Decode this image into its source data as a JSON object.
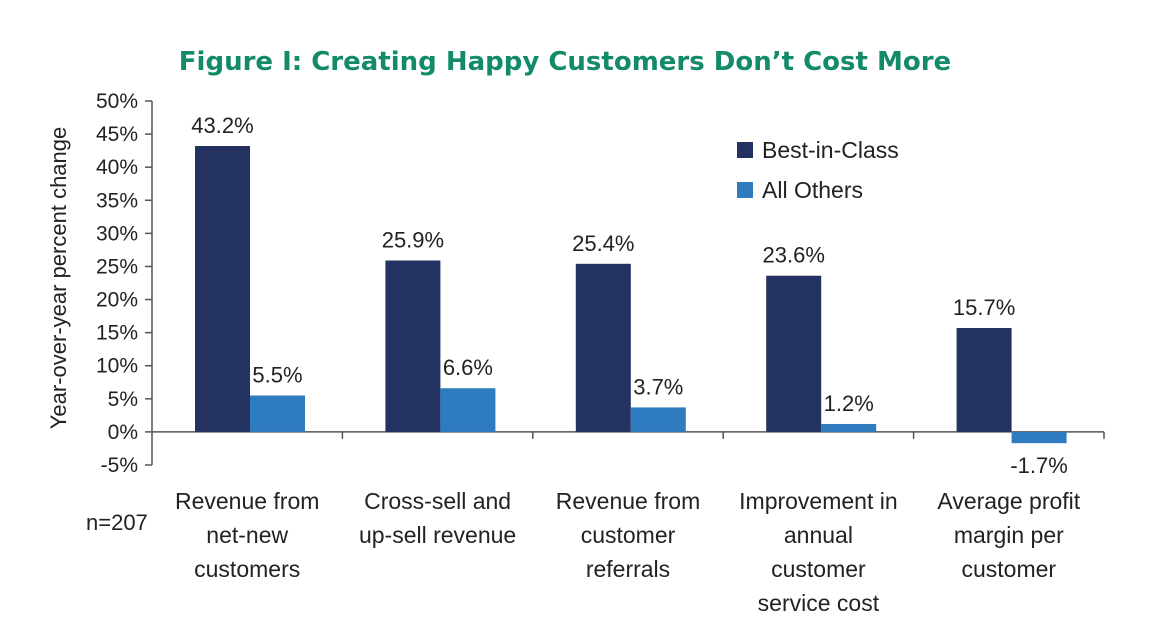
{
  "chart_data": {
    "type": "bar",
    "title": "Figure I: Creating Happy Customers Don’t Cost More",
    "ylabel": "Year-over-year percent change",
    "xlabel": "",
    "ylim": [
      -5,
      50
    ],
    "yticks": [
      -5,
      0,
      5,
      10,
      15,
      20,
      25,
      30,
      35,
      40,
      45,
      50
    ],
    "ytick_labels": [
      "-5%",
      "0%",
      "5%",
      "10%",
      "15%",
      "20%",
      "25%",
      "30%",
      "35%",
      "40%",
      "45%",
      "50%"
    ],
    "categories": [
      [
        "Revenue from",
        "net-new",
        "customers"
      ],
      [
        "Cross-sell and",
        "up-sell revenue"
      ],
      [
        "Revenue from",
        "customer",
        "referrals"
      ],
      [
        "Improvement in",
        "annual",
        "customer",
        "service cost"
      ],
      [
        "Average profit",
        "margin per",
        "customer"
      ]
    ],
    "series": [
      {
        "name": "Best-in-Class",
        "color": "#243262",
        "values": [
          43.2,
          25.9,
          25.4,
          23.6,
          15.7
        ],
        "labels": [
          "43.2%",
          "25.9%",
          "25.4%",
          "23.6%",
          "15.7%"
        ]
      },
      {
        "name": "All Others",
        "color": "#2e7bc0",
        "values": [
          5.5,
          6.6,
          3.7,
          1.2,
          -1.7
        ],
        "labels": [
          "5.5%",
          "6.6%",
          "3.7%",
          "1.2%",
          "-1.7%"
        ]
      }
    ],
    "legend_position": "top-right",
    "grid": false,
    "title_color": "#138a6a"
  },
  "note": "n=207"
}
